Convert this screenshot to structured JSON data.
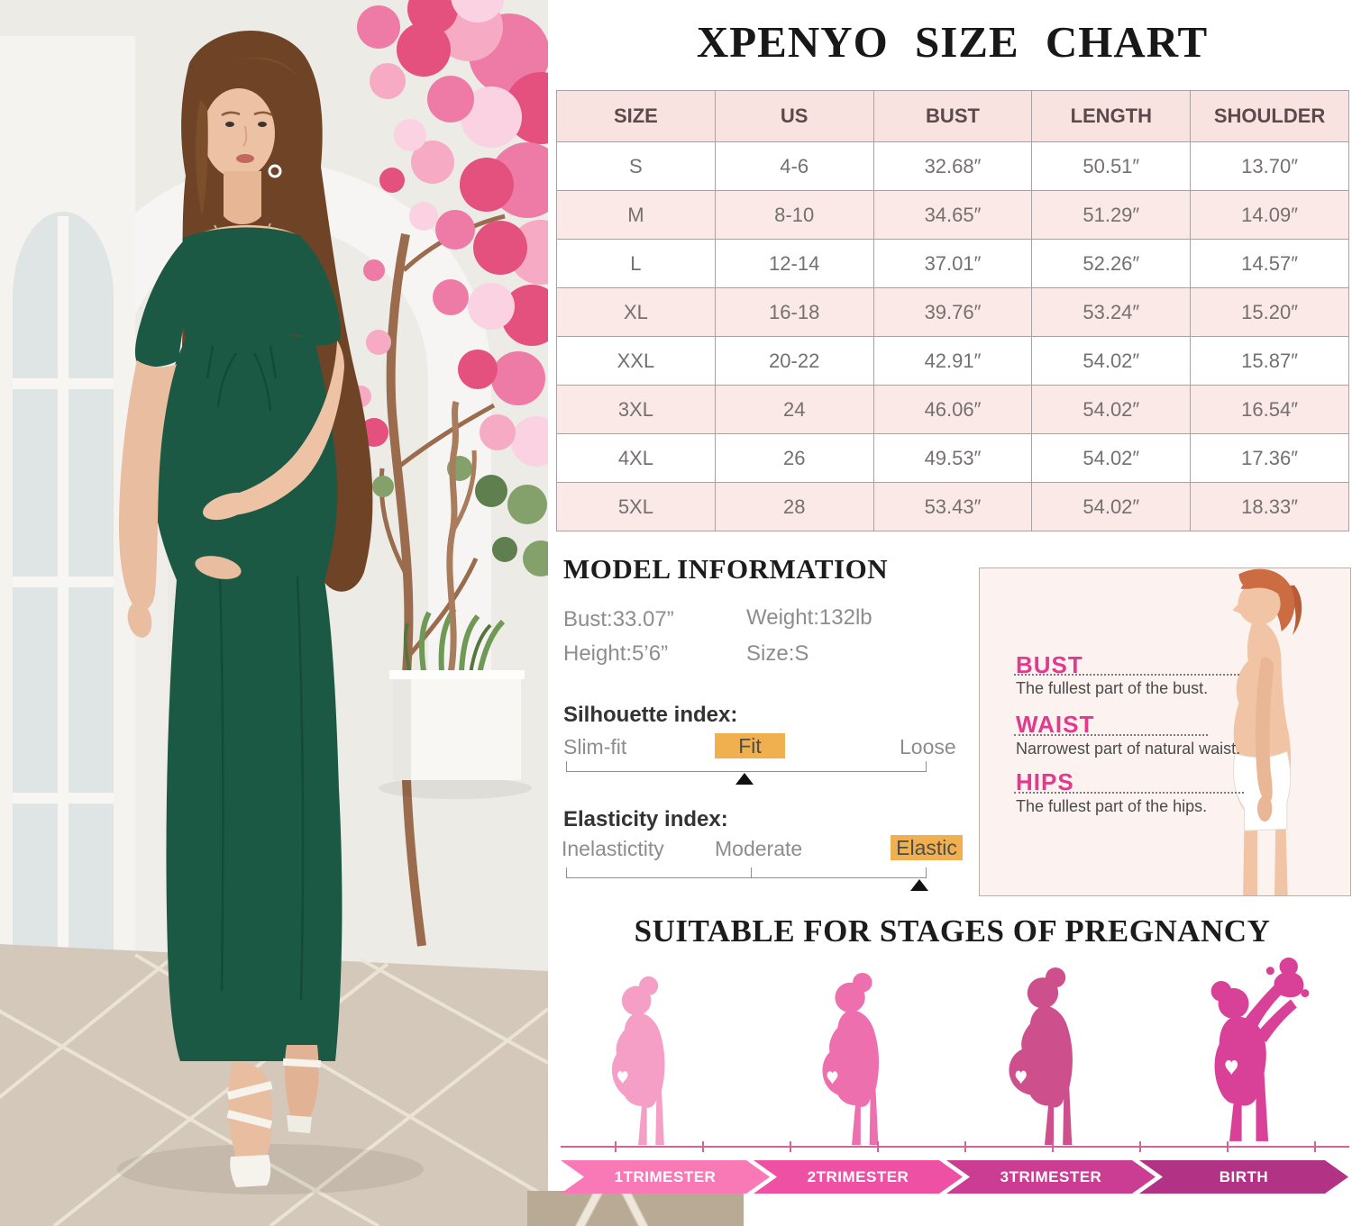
{
  "title": "XPENYO SIZE CHART",
  "size_table": {
    "headers": [
      "SIZE",
      "US",
      "BUST",
      "LENGTH",
      "SHOULDER"
    ],
    "rows": [
      [
        "S",
        "4-6",
        "32.68″",
        "50.51″",
        "13.70″"
      ],
      [
        "M",
        "8-10",
        "34.65″",
        "51.29″",
        "14.09″"
      ],
      [
        "L",
        "12-14",
        "37.01″",
        "52.26″",
        "14.57″"
      ],
      [
        "XL",
        "16-18",
        "39.76″",
        "53.24″",
        "15.20″"
      ],
      [
        "XXL",
        "20-22",
        "42.91″",
        "54.02″",
        "15.87″"
      ],
      [
        "3XL",
        "24",
        "46.06″",
        "54.02″",
        "16.54″"
      ],
      [
        "4XL",
        "26",
        "49.53″",
        "54.02″",
        "17.36″"
      ],
      [
        "5XL",
        "28",
        "53.43″",
        "54.02″",
        "18.33″"
      ]
    ]
  },
  "model_information": {
    "heading": "MODEL INFORMATION",
    "bust": "Bust:33.07”",
    "height": "Height:5’6”",
    "weight": "Weight:132lb",
    "size": "Size:S"
  },
  "silhouette_index": {
    "heading": "Silhouette index:",
    "left_label": "Slim-fit",
    "selected_label": "Fit",
    "right_label": "Loose",
    "selected": "Fit"
  },
  "elasticity_index": {
    "heading": "Elasticity index:",
    "left_label": "Inelastictity",
    "middle_label": "Moderate",
    "selected_label": "Elastic",
    "selected": "Elastic"
  },
  "measure_guide": {
    "bust_label": "BUST",
    "bust_desc": "The fullest part of the bust.",
    "waist_label": "WAIST",
    "waist_desc": "Narrowest part of natural waist.",
    "hips_label": "HIPS",
    "hips_desc": "The fullest part of the hips."
  },
  "pregnancy_stages": {
    "heading": "SUITABLE FOR STAGES OF PREGNANCY",
    "stages": [
      "1TRIMESTER",
      "2TRIMESTER",
      "3TRIMESTER",
      "BIRTH"
    ]
  },
  "colors": {
    "accent_pink": "#e23a8e",
    "highlight_orange": "#f1b04f",
    "table_header_bg": "#f8e3e0",
    "table_row_alt_bg": "#fae9e6",
    "timeline_pink": "#d26598",
    "dress_green": "#1b5945",
    "stage_figures": [
      "#f59fc6",
      "#ee6fae",
      "#cd4f8b",
      "#d94097"
    ],
    "stage_banners": [
      "#f879b5",
      "#ee51a4",
      "#ca3d92",
      "#b23386"
    ]
  }
}
